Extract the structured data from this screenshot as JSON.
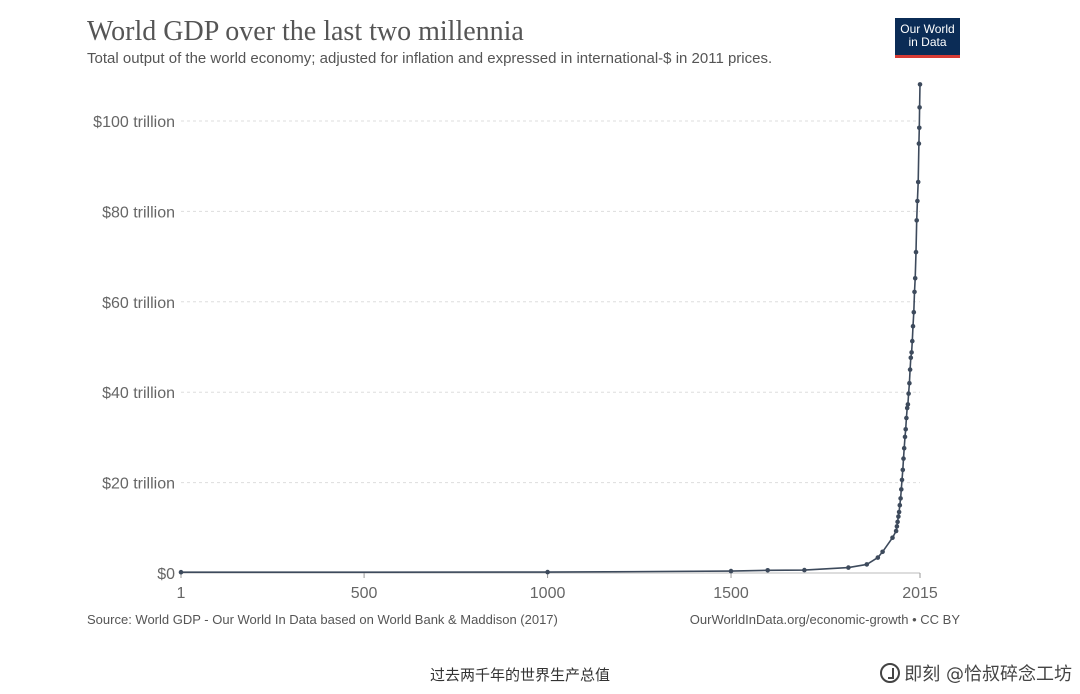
{
  "header": {
    "title": "World GDP over the last two millennia",
    "subtitle": "Total output of the world economy; adjusted for inflation and expressed in international-$ in 2011 prices."
  },
  "logo": {
    "line1": "Our World",
    "line2": "in Data",
    "bg_color": "#0b2c56",
    "accent_color": "#d73b34"
  },
  "footer": {
    "source": "Source: World GDP - Our World In Data based on World Bank & Maddison (2017)",
    "credit": "OurWorldInData.org/economic-growth • CC BY"
  },
  "caption": "过去两千年的世界生产总值",
  "watermark": {
    "text": "即刻 @恰叔碎念工坊",
    "icon": "jike-logo-icon"
  },
  "chart_data": {
    "type": "line",
    "title": "World GDP over the last two millennia",
    "xlabel": "",
    "ylabel": "",
    "xlim": [
      1,
      2015
    ],
    "ylim": [
      0,
      100
    ],
    "grid": true,
    "line_color": "#3d4a5c",
    "x_ticks": [
      {
        "value": 1,
        "label": "1"
      },
      {
        "value": 500,
        "label": "500"
      },
      {
        "value": 1000,
        "label": "1000"
      },
      {
        "value": 1500,
        "label": "1500"
      },
      {
        "value": 2015,
        "label": "2015"
      }
    ],
    "y_ticks": [
      {
        "value": 0,
        "label": "$0"
      },
      {
        "value": 20,
        "label": "$20 trillion"
      },
      {
        "value": 40,
        "label": "$40 trillion"
      },
      {
        "value": 60,
        "label": "$60 trillion"
      },
      {
        "value": 80,
        "label": "$80 trillion"
      },
      {
        "value": 100,
        "label": "$100 trillion"
      }
    ],
    "series": [
      {
        "x": [
          1,
          1000,
          1500,
          1600,
          1700,
          1820,
          1870,
          1900,
          1913,
          1940,
          1950,
          1952,
          1954,
          1956,
          1958,
          1960,
          1962,
          1964,
          1966,
          1968,
          1970,
          1972,
          1974,
          1976,
          1978,
          1980,
          1982,
          1984,
          1986,
          1988,
          1990,
          1992,
          1994,
          1996,
          1998,
          2000,
          2002,
          2004,
          2006,
          2008,
          2010,
          2012,
          2013,
          2014,
          2015
        ],
        "y": [
          0.18,
          0.21,
          0.43,
          0.6,
          0.64,
          1.2,
          1.9,
          3.4,
          4.7,
          7.8,
          9.3,
          10.3,
          11.3,
          12.5,
          13.5,
          15.0,
          16.5,
          18.5,
          20.6,
          22.8,
          25.3,
          27.6,
          30.1,
          31.8,
          34.3,
          36.5,
          37.3,
          39.7,
          42.0,
          45.0,
          47.6,
          48.8,
          51.3,
          54.6,
          57.7,
          62.2,
          65.2,
          71.0,
          78.0,
          82.3,
          86.5,
          95.0,
          98.5,
          103.0,
          108.1
        ]
      }
    ]
  }
}
